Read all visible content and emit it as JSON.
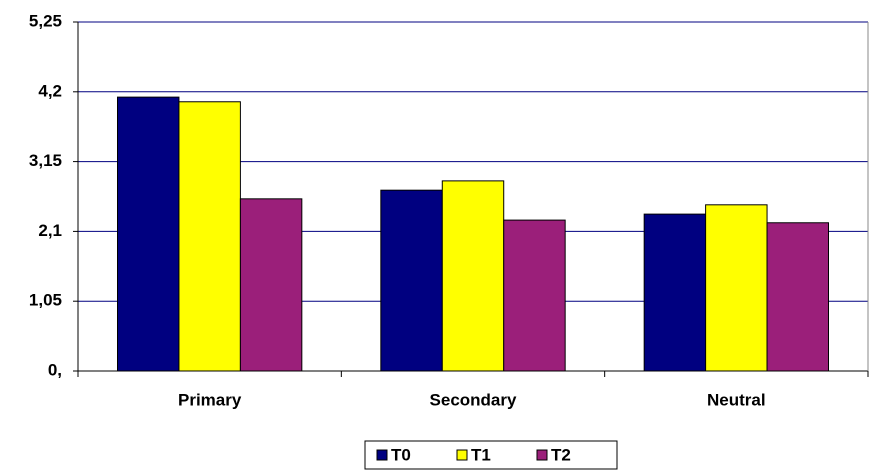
{
  "chart_data": {
    "type": "bar",
    "categories": [
      "Primary",
      "Secondary",
      "Neutral"
    ],
    "series": [
      {
        "name": "T0",
        "color": "#000080",
        "values": [
          4.12,
          2.72,
          2.36
        ]
      },
      {
        "name": "T1",
        "color": "#ffff00",
        "values": [
          4.05,
          2.86,
          2.5
        ]
      },
      {
        "name": "T2",
        "color": "#9b1f7a",
        "values": [
          2.59,
          2.27,
          2.23
        ]
      }
    ],
    "ylim": [
      0,
      5.25
    ],
    "yticks": [
      {
        "value": 0,
        "label": "0,"
      },
      {
        "value": 1.05,
        "label": "1,05"
      },
      {
        "value": 2.1,
        "label": "2,1"
      },
      {
        "value": 3.15,
        "label": "3,15"
      },
      {
        "value": 4.2,
        "label": "4,2"
      },
      {
        "value": 5.25,
        "label": "5,25"
      }
    ],
    "grid": true,
    "legend": "bottom"
  }
}
